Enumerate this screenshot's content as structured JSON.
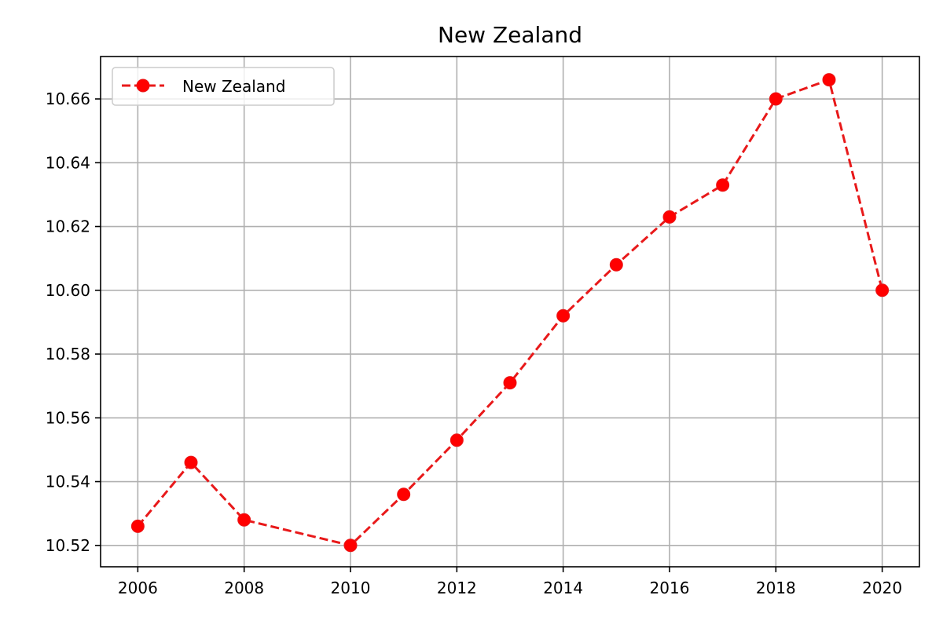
{
  "chart_data": {
    "type": "line",
    "title": "New Zealand",
    "xlabel": "",
    "ylabel": "",
    "xlim": [
      2005.3,
      2020.7
    ],
    "ylim": [
      10.5133,
      10.6733
    ],
    "x_ticks": [
      2006,
      2008,
      2010,
      2012,
      2014,
      2016,
      2018,
      2020
    ],
    "x_tick_labels": [
      "2006",
      "2008",
      "2010",
      "2012",
      "2014",
      "2016",
      "2018",
      "2020"
    ],
    "y_ticks": [
      10.52,
      10.54,
      10.56,
      10.58,
      10.6,
      10.62,
      10.64,
      10.66
    ],
    "y_tick_labels": [
      "10.52",
      "10.54",
      "10.56",
      "10.58",
      "10.60",
      "10.62",
      "10.64",
      "10.66"
    ],
    "grid": true,
    "legend_position": "top-left",
    "series": [
      {
        "name": "New Zealand",
        "color": "#ff0000",
        "line_color": "#e8191a",
        "line_style": "dashed",
        "marker": "circle",
        "x": [
          2006,
          2007,
          2008,
          2010,
          2011,
          2012,
          2013,
          2014,
          2015,
          2016,
          2017,
          2018,
          2019,
          2020
        ],
        "y": [
          10.526,
          10.546,
          10.528,
          10.52,
          10.536,
          10.553,
          10.571,
          10.592,
          10.608,
          10.623,
          10.633,
          10.66,
          10.666,
          10.6
        ]
      }
    ]
  }
}
